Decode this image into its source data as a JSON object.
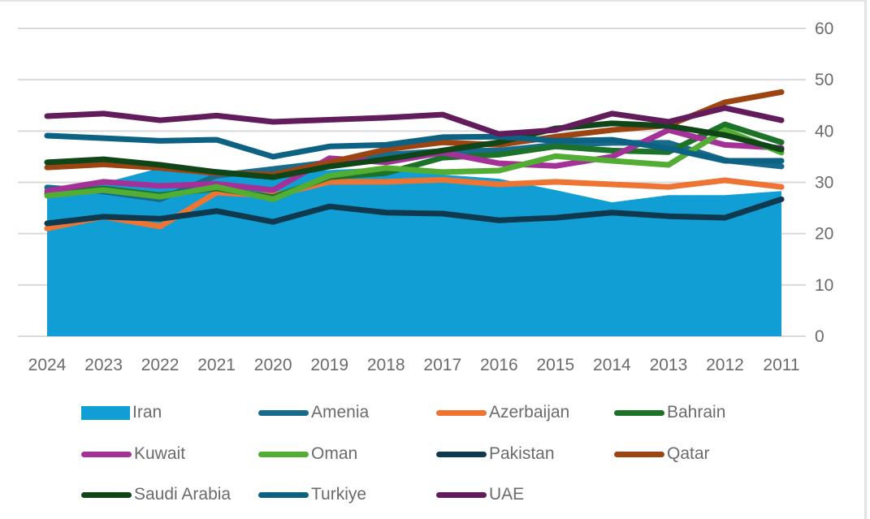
{
  "chart_data": {
    "type": "line",
    "title": "",
    "xlabel": "",
    "ylabel": "",
    "ylim": [
      0,
      60
    ],
    "yticks": [
      0,
      10,
      20,
      30,
      40,
      50,
      60
    ],
    "y_axis_side": "right",
    "grid": true,
    "legend_position": "bottom",
    "categories": [
      "2024",
      "2023",
      "2022",
      "2021",
      "2020",
      "2019",
      "2018",
      "2017",
      "2016",
      "2015",
      "2014",
      "2013",
      "2012",
      "2011"
    ],
    "series": [
      {
        "name": "Iran",
        "kind": "area",
        "color": "#119ed4",
        "values": [
          28.8,
          29.9,
          32.8,
          32.6,
          31.6,
          32.4,
          32.9,
          31.5,
          30.7,
          28.5,
          26.1,
          27.5,
          27.5,
          28.3
        ]
      },
      {
        "name": "Amenia",
        "kind": "line",
        "color": "#196b8c",
        "values": [
          29.0,
          28.2,
          26.7,
          31.3,
          32.6,
          33.9,
          35.4,
          36.1,
          36.2,
          37.3,
          37.7,
          37.7,
          34.3,
          33.1
        ]
      },
      {
        "name": "Azerbaijan",
        "kind": "line",
        "color": "#ee7433",
        "values": [
          21.0,
          23.3,
          21.4,
          28.0,
          27.4,
          30.1,
          30.1,
          30.5,
          29.6,
          30.1,
          29.6,
          29.1,
          30.4,
          29.1
        ]
      },
      {
        "name": "Bahrain",
        "kind": "line",
        "color": "#1c7228",
        "values": [
          27.8,
          28.8,
          27.5,
          28.8,
          27.1,
          31.0,
          31.8,
          34.8,
          35.4,
          37.0,
          36.2,
          35.9,
          41.3,
          37.8
        ]
      },
      {
        "name": "Kuwait",
        "kind": "line",
        "color": "#a33198",
        "values": [
          28.3,
          30.1,
          29.3,
          29.7,
          28.5,
          34.7,
          33.9,
          35.8,
          33.7,
          33.2,
          35.0,
          40.2,
          37.3,
          36.7
        ]
      },
      {
        "name": "Oman",
        "kind": "line",
        "color": "#52ad34",
        "values": [
          27.4,
          28.5,
          27.2,
          29.1,
          26.7,
          31.3,
          32.8,
          32.0,
          32.3,
          35.1,
          34.2,
          33.4,
          40.2,
          35.8
        ]
      },
      {
        "name": "Pakistan",
        "kind": "line",
        "color": "#0e394e",
        "values": [
          22.0,
          23.3,
          22.9,
          24.4,
          22.3,
          25.3,
          24.1,
          23.9,
          22.6,
          23.1,
          24.1,
          23.4,
          23.1,
          26.7
        ]
      },
      {
        "name": "Qatar",
        "kind": "line",
        "color": "#9c4512",
        "values": [
          32.9,
          33.5,
          32.8,
          31.8,
          31.5,
          33.9,
          36.4,
          37.8,
          37.3,
          38.9,
          40.2,
          41.1,
          45.6,
          47.6
        ]
      },
      {
        "name": "Saudi Arabia",
        "kind": "line",
        "color": "#0f4517",
        "values": [
          33.9,
          34.5,
          33.4,
          32.0,
          31.0,
          33.1,
          34.5,
          36.2,
          37.8,
          40.5,
          41.5,
          41.0,
          39.2,
          36.4
        ]
      },
      {
        "name": "Turkiye",
        "kind": "line",
        "color": "#0d6283",
        "values": [
          39.1,
          38.6,
          38.1,
          38.3,
          35.0,
          37.0,
          37.3,
          38.8,
          38.9,
          38.1,
          38.3,
          36.6,
          34.2,
          34.2
        ]
      },
      {
        "name": "UAE",
        "kind": "line",
        "color": "#621b5b",
        "values": [
          42.9,
          43.4,
          42.1,
          43.0,
          41.8,
          42.2,
          42.6,
          43.2,
          39.4,
          40.2,
          43.4,
          41.8,
          44.5,
          42.1
        ]
      }
    ]
  },
  "legend": {
    "items": [
      {
        "label": "Iran",
        "color": "#119ed4",
        "kind": "area"
      },
      {
        "label": "Amenia",
        "color": "#196b8c",
        "kind": "line"
      },
      {
        "label": "Azerbaijan",
        "color": "#ee7433",
        "kind": "line"
      },
      {
        "label": "Bahrain",
        "color": "#1c7228",
        "kind": "line"
      },
      {
        "label": "Kuwait",
        "color": "#a33198",
        "kind": "line"
      },
      {
        "label": "Oman",
        "color": "#52ad34",
        "kind": "line"
      },
      {
        "label": "Pakistan",
        "color": "#0e394e",
        "kind": "line"
      },
      {
        "label": "Qatar",
        "color": "#9c4512",
        "kind": "line"
      },
      {
        "label": "Saudi Arabia",
        "color": "#0f4517",
        "kind": "line"
      },
      {
        "label": "Turkiye",
        "color": "#0d6283",
        "kind": "line"
      },
      {
        "label": "UAE",
        "color": "#621b5b",
        "kind": "line"
      }
    ]
  }
}
